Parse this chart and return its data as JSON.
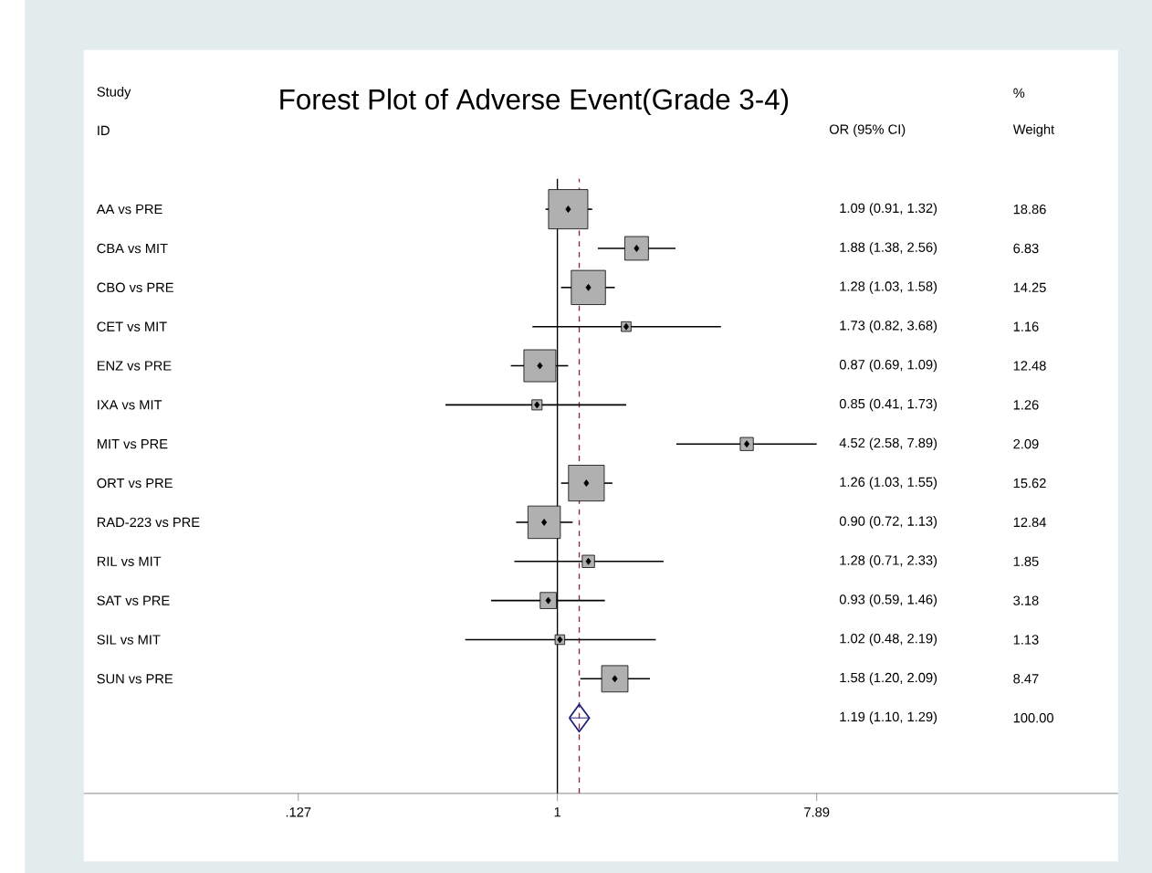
{
  "chart_data": {
    "type": "scatter",
    "orientation": "horizontal",
    "title": "Forest Plot of Adverse Event(Grade 3-4)",
    "categories": [
      "AA vs PRE",
      "CBA vs MIT",
      "CBO vs PRE",
      "CET vs MIT",
      "ENZ vs PRE",
      "IXA vs MIT",
      "MIT vs PRE",
      "ORT vs PRE",
      "RAD-223 vs PRE",
      "RIL vs MIT",
      "SAT vs PRE",
      "SIL vs MIT",
      "SUN vs PRE",
      null
    ],
    "series": [
      {
        "type": "bubble",
        "marker": "square",
        "color": "#b0b0b0",
        "values": [
          1.09,
          1.88,
          1.28,
          1.73,
          0.87,
          0.85,
          4.52,
          1.26,
          0.9,
          1.28,
          0.93,
          1.02,
          1.58,
          null
        ],
        "sizes": [
          1,
          0.362,
          0.756,
          0.0615,
          0.662,
          0.0668,
          0.111,
          0.828,
          0.681,
          0.0981,
          0.169,
          0.0599,
          0.449,
          null
        ]
      },
      {
        "type": "scatter",
        "marker": "diamond",
        "color": "#000000",
        "values": [
          1.09,
          1.88,
          1.28,
          1.73,
          0.87,
          0.85,
          4.52,
          1.26,
          0.9,
          1.28,
          0.93,
          1.02,
          1.58,
          null
        ],
        "errors": [
          [
            0.91,
            1.32
          ],
          [
            1.38,
            2.56
          ],
          [
            1.03,
            1.58
          ],
          [
            0.82,
            3.68
          ],
          [
            0.69,
            1.09
          ],
          [
            0.41,
            1.73
          ],
          [
            2.58,
            7.89
          ],
          [
            1.03,
            1.55
          ],
          [
            0.72,
            1.13
          ],
          [
            0.71,
            2.33
          ],
          [
            0.59,
            1.46
          ],
          [
            0.48,
            2.19
          ],
          [
            1.2,
            2.09
          ],
          null
        ]
      },
      {
        "type": "scatter",
        "marker": "diamond",
        "color": "#1f1f7a",
        "values": [
          null,
          null,
          null,
          null,
          null,
          null,
          null,
          null,
          null,
          null,
          null,
          null,
          null,
          1.19
        ],
        "errors": [
          null,
          null,
          null,
          null,
          null,
          null,
          null,
          null,
          null,
          null,
          null,
          null,
          null,
          [
            1.1,
            1.29
          ]
        ]
      }
    ],
    "log": "x",
    "xlim": [
      0.023,
      87
    ],
    "xticks": [
      {
        "value": 0.127,
        "label": ".127"
      },
      1,
      7.89
    ],
    "ref_lines": [
      {
        "axis": "x",
        "value": 1,
        "color": "#000000",
        "line_style": "solid"
      },
      {
        "axis": "x",
        "value": 1.19,
        "color": "#8b2a3a",
        "line_style": "dashed"
      }
    ],
    "annotations": [
      "Study",
      "ID",
      "OR (95% CI)",
      "%",
      "Weight",
      "1.09 (0.91, 1.32)",
      "1.88 (1.38, 2.56)",
      "1.28 (1.03, 1.58)",
      "1.73 (0.82, 3.68)",
      "0.87 (0.69, 1.09)",
      "0.85 (0.41, 1.73)",
      "4.52 (2.58, 7.89)",
      "1.26 (1.03, 1.55)",
      "0.90 (0.72, 1.13)",
      "1.28 (0.71, 2.33)",
      "0.93 (0.59, 1.46)",
      "1.02 (0.48, 2.19)",
      "1.58 (1.20, 2.09)",
      "1.19 (1.10, 1.29)",
      "18.86",
      "6.83",
      "14.25",
      "1.16",
      "12.48",
      "1.26",
      "2.09",
      "15.62",
      "12.84",
      "1.85",
      "3.18",
      "1.13",
      "8.47",
      "100.00"
    ],
    "grid": false
  }
}
